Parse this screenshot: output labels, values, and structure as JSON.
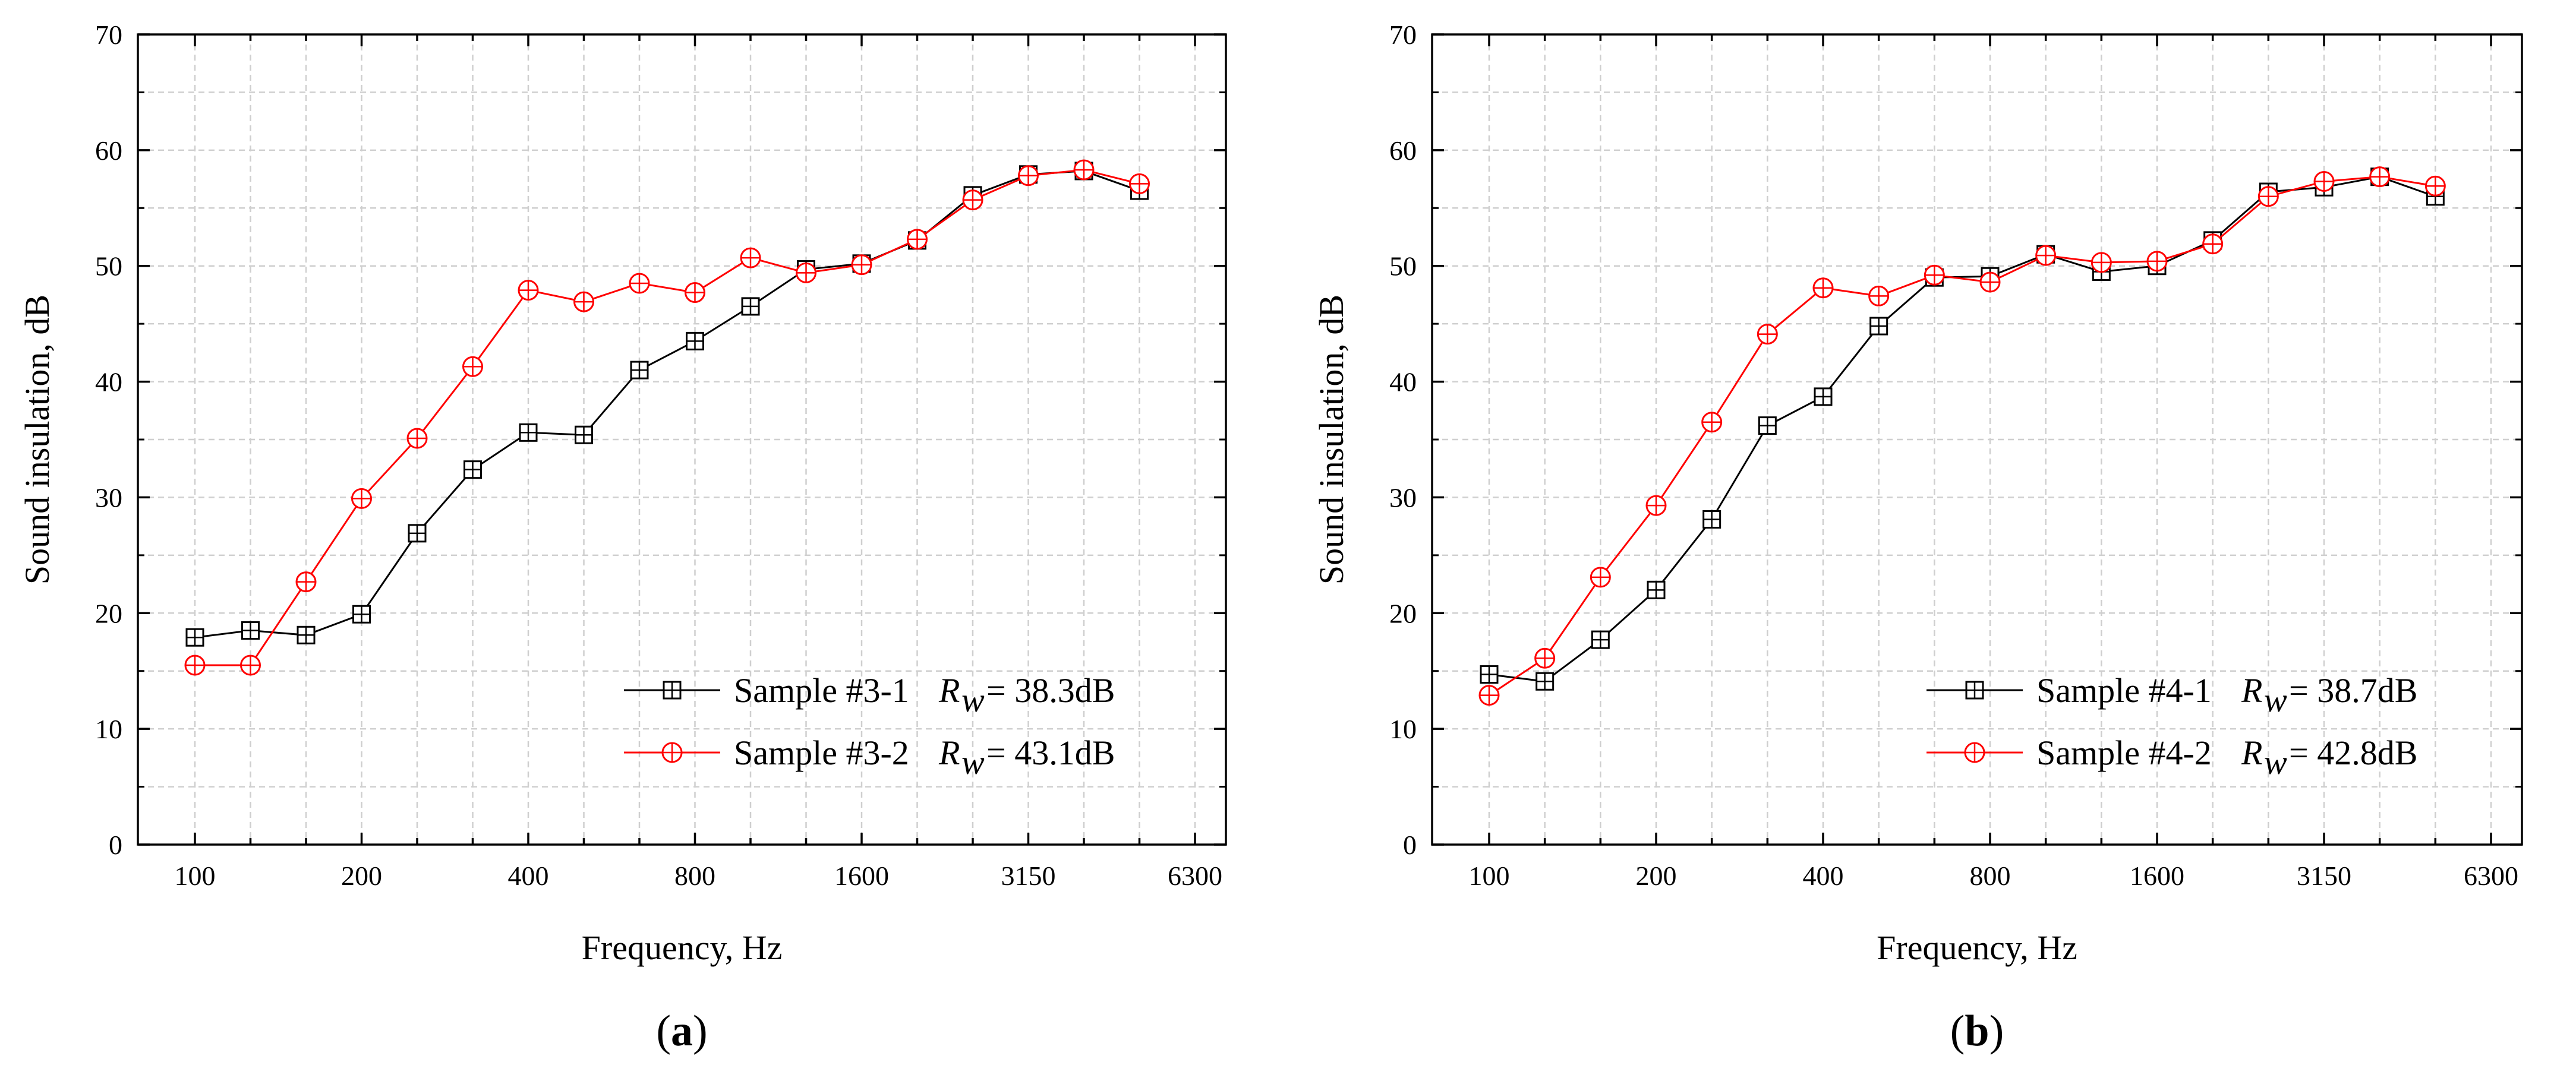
{
  "chart_data": [
    {
      "type": "line",
      "panel_label": {
        "open": "(",
        "letter": "a",
        "close": ")"
      },
      "xlabel": "Frequency, Hz",
      "ylabel": "Sound insulation, dB",
      "ylim": [
        0,
        70
      ],
      "yticks": [
        0,
        10,
        20,
        30,
        40,
        50,
        60,
        70
      ],
      "x_categories": [
        "100",
        "125",
        "160",
        "200",
        "250",
        "315",
        "400",
        "500",
        "630",
        "800",
        "1000",
        "1250",
        "1600",
        "2000",
        "2500",
        "3150",
        "4000",
        "5000",
        "6300"
      ],
      "xtick_labels": [
        "100",
        "200",
        "400",
        "800",
        "1600",
        "3150",
        "6300"
      ],
      "grid": true,
      "legend_position": "bottom-right",
      "series": [
        {
          "name": "Sample #3-1",
          "rw_symbol": "R",
          "rw_sub": "w",
          "rw_value": "= 38.3dB",
          "color": "#000000",
          "marker": "square-plus",
          "values": [
            17.9,
            18.5,
            18.1,
            19.9,
            26.9,
            32.4,
            35.6,
            35.4,
            41.0,
            43.5,
            46.5,
            49.7,
            50.2,
            52.2,
            56.1,
            57.9,
            58.2,
            56.5
          ]
        },
        {
          "name": "Sample #3-2",
          "rw_symbol": "R",
          "rw_sub": "w",
          "rw_value": "= 43.1dB",
          "color": "#ff0000",
          "marker": "circle-plus",
          "values": [
            15.5,
            15.5,
            22.7,
            29.9,
            35.1,
            41.3,
            47.9,
            46.9,
            48.5,
            47.7,
            50.7,
            49.4,
            50.1,
            52.3,
            55.7,
            57.8,
            58.3,
            57.1
          ]
        }
      ]
    },
    {
      "type": "line",
      "panel_label": {
        "open": "(",
        "letter": "b",
        "close": ")"
      },
      "xlabel": "Frequency, Hz",
      "ylabel": "Sound insulation, dB",
      "ylim": [
        0,
        70
      ],
      "yticks": [
        0,
        10,
        20,
        30,
        40,
        50,
        60,
        70
      ],
      "x_categories": [
        "100",
        "125",
        "160",
        "200",
        "250",
        "315",
        "400",
        "500",
        "630",
        "800",
        "1000",
        "1250",
        "1600",
        "2000",
        "2500",
        "3150",
        "4000",
        "5000",
        "6300"
      ],
      "xtick_labels": [
        "100",
        "200",
        "400",
        "800",
        "1600",
        "3150",
        "6300"
      ],
      "grid": true,
      "legend_position": "bottom-right",
      "series": [
        {
          "name": "Sample #4-1",
          "rw_symbol": "R",
          "rw_sub": "w",
          "rw_value": "= 38.7dB",
          "color": "#000000",
          "marker": "square-plus",
          "values": [
            14.7,
            14.1,
            17.7,
            22.0,
            28.1,
            36.2,
            38.7,
            44.8,
            49.0,
            49.1,
            51.0,
            49.5,
            50.0,
            52.2,
            56.4,
            56.8,
            57.7,
            56.0
          ]
        },
        {
          "name": "Sample #4-2",
          "rw_symbol": "R",
          "rw_sub": "w",
          "rw_value": "= 42.8dB",
          "color": "#ff0000",
          "marker": "circle-plus",
          "values": [
            12.9,
            16.1,
            23.1,
            29.3,
            36.5,
            44.1,
            48.1,
            47.4,
            49.2,
            48.6,
            50.9,
            50.3,
            50.4,
            51.9,
            56.0,
            57.3,
            57.7,
            56.9
          ]
        }
      ]
    }
  ]
}
